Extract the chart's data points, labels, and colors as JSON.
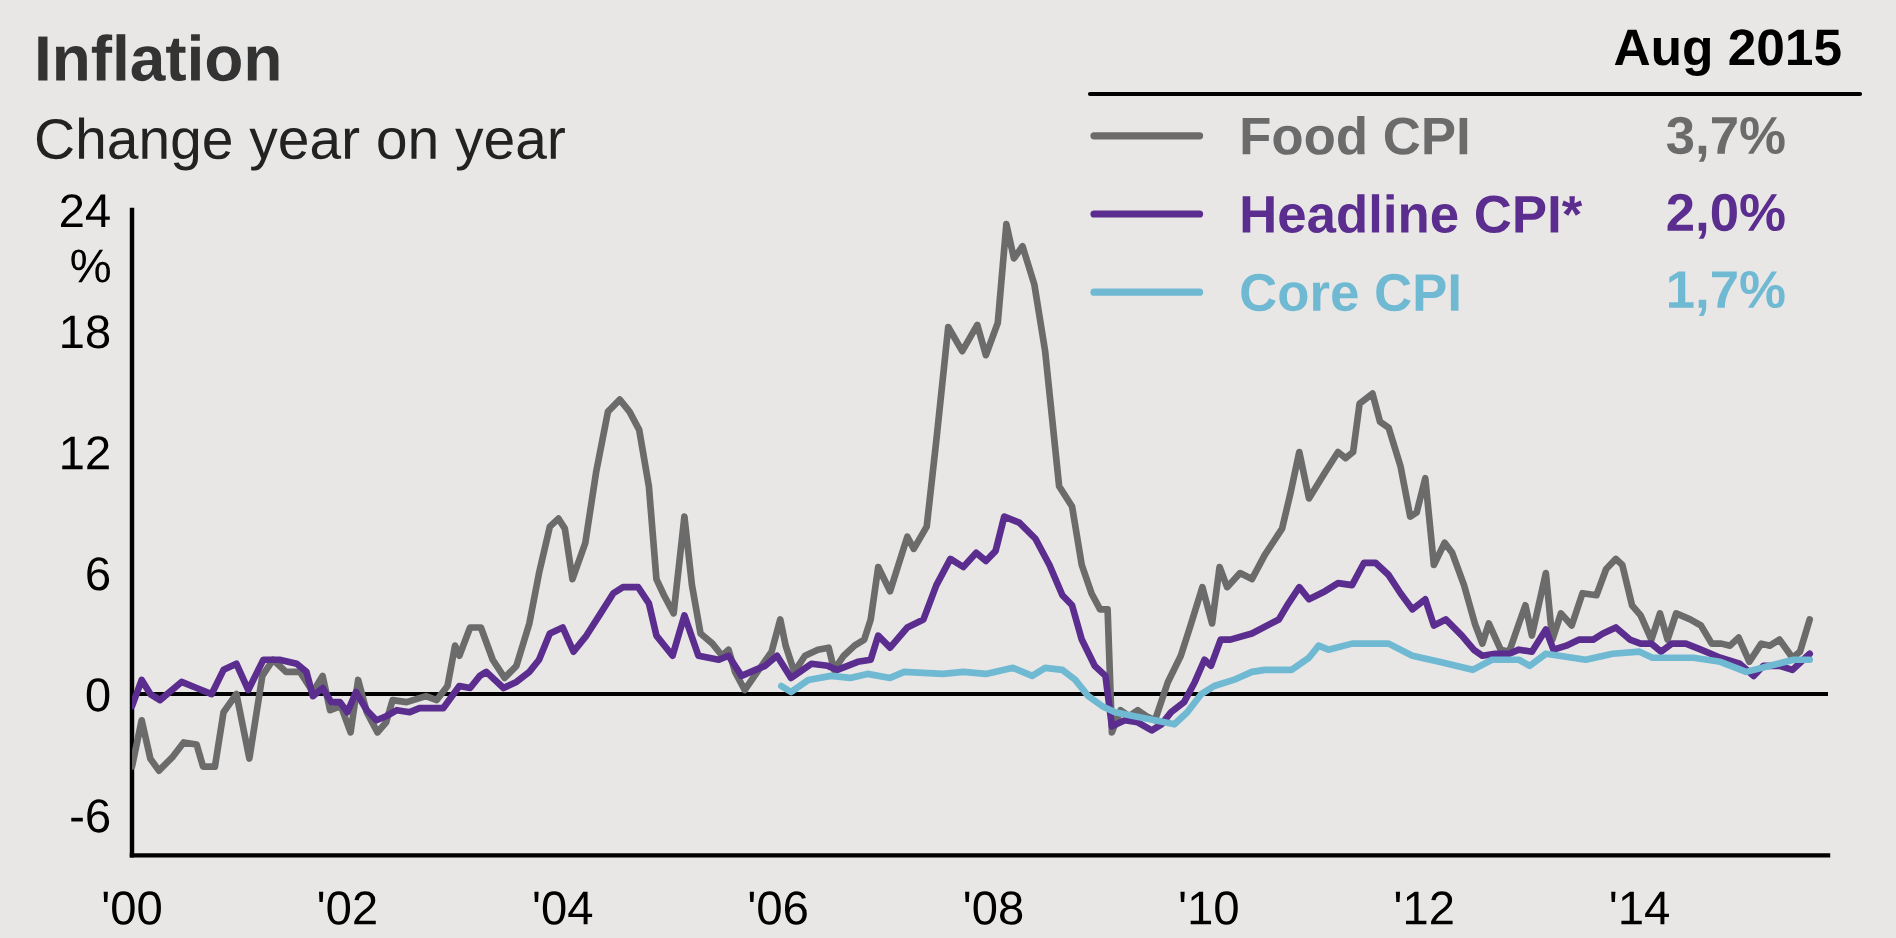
{
  "chart_data": {
    "type": "line",
    "title": "Inflation",
    "subtitle": "Change year on year",
    "ylabel": "%",
    "legend_title": "Aug 2015",
    "annotations": [
      "3,7%",
      "2,0%",
      "1,7%"
    ],
    "xlim": [
      2000,
      2015.75
    ],
    "ylim": [
      -8,
      24
    ],
    "xticks": [
      {
        "value": 2000,
        "label": "'00"
      },
      {
        "value": 2002,
        "label": "'02"
      },
      {
        "value": 2004,
        "label": "'04"
      },
      {
        "value": 2006,
        "label": "'06"
      },
      {
        "value": 2008,
        "label": "'08"
      },
      {
        "value": 2010,
        "label": "'10"
      },
      {
        "value": 2012,
        "label": "'12"
      },
      {
        "value": 2014,
        "label": "'14"
      }
    ],
    "yticks": [
      -6,
      0,
      6,
      12,
      18,
      24
    ],
    "legend": "top right",
    "line_style": "solid",
    "ref_lines": [
      {
        "axis": "y",
        "value": 0,
        "color": "#000000"
      }
    ],
    "series": [
      {
        "name": "Food CPI",
        "color": "#6b6b6b",
        "x": [
          2000.0,
          2000.09,
          2000.17,
          2000.25,
          2000.38,
          2000.48,
          2000.6,
          2000.66,
          2000.77,
          2000.85,
          2000.97,
          2001.09,
          2001.21,
          2001.31,
          2001.43,
          2001.56,
          2001.68,
          2001.77,
          2001.84,
          2001.94,
          2002.03,
          2002.1,
          2002.18,
          2002.28,
          2002.36,
          2002.42,
          2002.55,
          2002.73,
          2002.83,
          2002.93,
          2003.0,
          2003.04,
          2003.14,
          2003.24,
          2003.35,
          2003.46,
          2003.57,
          2003.69,
          2003.78,
          2003.88,
          2003.96,
          2004.02,
          2004.09,
          2004.21,
          2004.31,
          2004.42,
          2004.53,
          2004.62,
          2004.71,
          2004.8,
          2004.87,
          2004.94,
          2005.03,
          2005.13,
          2005.2,
          2005.28,
          2005.39,
          2005.48,
          2005.54,
          2005.6,
          2005.69,
          2005.82,
          2005.94,
          2006.02,
          2006.07,
          2006.15,
          2006.25,
          2006.37,
          2006.47,
          2006.52,
          2006.61,
          2006.71,
          2006.8,
          2006.86,
          2006.93,
          2007.04,
          2007.2,
          2007.26,
          2007.38,
          2007.47,
          2007.58,
          2007.71,
          2007.85,
          2007.93,
          2008.04,
          2008.12,
          2008.19,
          2008.27,
          2008.38,
          2008.48,
          2008.61,
          2008.73,
          2008.82,
          2008.91,
          2008.99,
          2009.06,
          2009.1,
          2009.18,
          2009.26,
          2009.34,
          2009.42,
          2009.5,
          2009.62,
          2009.74,
          2009.83,
          2009.94,
          2010.03,
          2010.1,
          2010.17,
          2010.29,
          2010.4,
          2010.52,
          2010.68,
          2010.76,
          2010.84,
          2010.93,
          2011.08,
          2011.2,
          2011.27,
          2011.34,
          2011.4,
          2011.52,
          2011.59,
          2011.67,
          2011.78,
          2011.87,
          2011.93,
          2012.01,
          2012.09,
          2012.19,
          2012.26,
          2012.37,
          2012.47,
          2012.54,
          2012.6,
          2012.71,
          2012.79,
          2012.88,
          2012.94,
          2013.0,
          2013.13,
          2013.19,
          2013.27,
          2013.37,
          2013.47,
          2013.6,
          2013.69,
          2013.78,
          2013.84,
          2013.93,
          2014.01,
          2014.11,
          2014.19,
          2014.26,
          2014.34,
          2014.47,
          2014.57,
          2014.67,
          2014.76,
          2014.84,
          2014.92,
          2015.02,
          2015.13,
          2015.21,
          2015.3,
          2015.42,
          2015.49,
          2015.58
        ],
        "values": [
          -3.6,
          -1.3,
          -3.2,
          -3.8,
          -3.1,
          -2.4,
          -2.5,
          -3.6,
          -3.6,
          -0.9,
          0,
          -3.2,
          0.9,
          1.7,
          1.1,
          1.1,
          0.1,
          0.9,
          -0.8,
          -0.6,
          -1.9,
          0.7,
          -0.9,
          -1.9,
          -1.4,
          -0.3,
          -0.4,
          -0.1,
          -0.3,
          0.4,
          2.4,
          1.9,
          3.3,
          3.3,
          1.7,
          0.8,
          1.4,
          3.5,
          6.0,
          8.3,
          8.7,
          8.2,
          5.7,
          7.5,
          11.0,
          14.0,
          14.6,
          14.0,
          13.1,
          10.3,
          5.7,
          4.9,
          4.0,
          8.8,
          5.4,
          3.0,
          2.5,
          1.9,
          2.2,
          1.1,
          0.2,
          1.2,
          2.1,
          3.7,
          2.4,
          1.1,
          1.9,
          2.2,
          2.3,
          1.2,
          1.9,
          2.4,
          2.7,
          3.7,
          6.3,
          5.1,
          7.8,
          7.2,
          8.3,
          12.6,
          18.2,
          17.0,
          18.3,
          16.8,
          18.4,
          23.3,
          21.6,
          22.2,
          20.3,
          17.0,
          10.3,
          9.3,
          6.4,
          5.0,
          4.2,
          4.2,
          -1.9,
          -0.8,
          -1.1,
          -0.8,
          -1.1,
          -1.3,
          0.6,
          1.9,
          3.4,
          5.3,
          3.5,
          6.3,
          5.3,
          6.0,
          5.7,
          6.9,
          8.2,
          10.0,
          12.0,
          9.7,
          11.0,
          12.0,
          11.7,
          12.0,
          14.4,
          14.9,
          13.5,
          13.2,
          11.3,
          8.8,
          9.0,
          10.7,
          6.4,
          7.5,
          7.0,
          5.4,
          3.5,
          2.5,
          3.5,
          2.2,
          2.1,
          3.5,
          4.4,
          2.9,
          6.0,
          2.7,
          4.0,
          3.4,
          5.0,
          4.9,
          6.2,
          6.7,
          6.4,
          4.4,
          3.9,
          2.7,
          4.0,
          2.7,
          4.0,
          3.7,
          3.4,
          2.5,
          2.5,
          2.4,
          2.8,
          1.6,
          2.5,
          2.4,
          2.7,
          1.8,
          2.1,
          3.7
        ]
      },
      {
        "name": "Headline CPI*",
        "color": "#5b2d8e",
        "x": [
          2000.0,
          2000.09,
          2000.17,
          2000.26,
          2000.46,
          2000.6,
          2000.74,
          2000.85,
          2000.97,
          2001.08,
          2001.22,
          2001.37,
          2001.53,
          2001.62,
          2001.68,
          2001.77,
          2001.85,
          2001.93,
          2002.0,
          2002.08,
          2002.18,
          2002.27,
          2002.36,
          2002.46,
          2002.58,
          2002.67,
          2002.89,
          2003.04,
          2003.14,
          2003.23,
          2003.29,
          2003.45,
          2003.57,
          2003.69,
          2003.78,
          2003.88,
          2004.0,
          2004.1,
          2004.22,
          2004.34,
          2004.47,
          2004.56,
          2004.7,
          2004.8,
          2004.87,
          2005.02,
          2005.13,
          2005.26,
          2005.45,
          2005.54,
          2005.66,
          2005.79,
          2005.88,
          2005.99,
          2006.12,
          2006.31,
          2006.46,
          2006.55,
          2006.74,
          2006.86,
          2006.93,
          2007.04,
          2007.2,
          2007.35,
          2007.47,
          2007.6,
          2007.72,
          2007.84,
          2007.93,
          2008.02,
          2008.1,
          2008.24,
          2008.39,
          2008.52,
          2008.64,
          2008.73,
          2008.82,
          2008.94,
          2009.04,
          2009.1,
          2009.22,
          2009.34,
          2009.47,
          2009.56,
          2009.65,
          2009.77,
          2009.87,
          2009.96,
          2010.02,
          2010.11,
          2010.2,
          2010.4,
          2010.65,
          2010.74,
          2010.84,
          2010.93,
          2011.08,
          2011.2,
          2011.33,
          2011.44,
          2011.55,
          2011.67,
          2011.78,
          2011.89,
          2012.01,
          2012.09,
          2012.2,
          2012.35,
          2012.46,
          2012.54,
          2012.66,
          2012.79,
          2012.88,
          2013.0,
          2013.13,
          2013.2,
          2013.32,
          2013.44,
          2013.57,
          2013.66,
          2013.78,
          2013.91,
          2014.01,
          2014.11,
          2014.2,
          2014.3,
          2014.43,
          2014.57,
          2014.75,
          2014.93,
          2015.06,
          2015.15,
          2015.3,
          2015.42,
          2015.58
        ],
        "values": [
          -0.6,
          0.7,
          0,
          -0.3,
          0.6,
          0.3,
          0,
          1.2,
          1.5,
          0.2,
          1.7,
          1.7,
          1.5,
          1.1,
          -0.1,
          0.3,
          -0.4,
          -0.4,
          -0.9,
          0.1,
          -0.8,
          -1.3,
          -1.1,
          -0.8,
          -0.9,
          -0.7,
          -0.7,
          0.4,
          0.3,
          0.9,
          1.1,
          0.3,
          0.6,
          1.1,
          1.7,
          3.0,
          3.3,
          2.1,
          2.9,
          3.9,
          5.0,
          5.3,
          5.3,
          4.5,
          2.9,
          1.9,
          3.9,
          1.9,
          1.7,
          1.9,
          0.9,
          1.2,
          1.4,
          1.9,
          0.8,
          1.5,
          1.4,
          1.2,
          1.6,
          1.7,
          2.9,
          2.3,
          3.3,
          3.7,
          5.4,
          6.7,
          6.3,
          7.0,
          6.6,
          7.1,
          8.8,
          8.5,
          7.7,
          6.4,
          4.9,
          4.4,
          2.7,
          1.4,
          0.9,
          -1.6,
          -1.3,
          -1.4,
          -1.8,
          -1.5,
          -0.9,
          -0.4,
          0.6,
          1.7,
          1.4,
          2.7,
          2.7,
          3.0,
          3.7,
          4.5,
          5.3,
          4.7,
          5.1,
          5.5,
          5.4,
          6.5,
          6.5,
          5.9,
          5.0,
          4.2,
          4.7,
          3.4,
          3.7,
          2.9,
          2.2,
          1.9,
          2.0,
          2.0,
          2.2,
          2.1,
          3.2,
          2.2,
          2.4,
          2.7,
          2.7,
          3.0,
          3.3,
          2.7,
          2.5,
          2.5,
          2.1,
          2.5,
          2.5,
          2.2,
          1.8,
          1.5,
          0.9,
          1.4,
          1.4,
          1.2,
          2.0
        ]
      },
      {
        "name": "Core CPI",
        "color": "#70b9d3",
        "x": [
          2006.03,
          2006.12,
          2006.28,
          2006.49,
          2006.67,
          2006.83,
          2007.04,
          2007.17,
          2007.53,
          2007.72,
          2007.93,
          2008.18,
          2008.36,
          2008.48,
          2008.64,
          2008.76,
          2008.88,
          2009.01,
          2009.13,
          2009.31,
          2009.5,
          2009.68,
          2009.8,
          2009.93,
          2010.05,
          2010.23,
          2010.4,
          2010.52,
          2010.77,
          2010.93,
          2011.02,
          2011.11,
          2011.33,
          2011.67,
          2011.89,
          2012.14,
          2012.45,
          2012.63,
          2012.88,
          2012.98,
          2013.13,
          2013.5,
          2013.75,
          2014.0,
          2014.12,
          2014.5,
          2014.75,
          2014.99,
          2015.21,
          2015.43,
          2015.58
        ],
        "values": [
          0.4,
          0.1,
          0.7,
          0.9,
          0.8,
          1.0,
          0.8,
          1.1,
          1.0,
          1.1,
          1.0,
          1.3,
          0.9,
          1.3,
          1.2,
          0.7,
          -0.1,
          -0.6,
          -0.9,
          -1.1,
          -1.3,
          -1.5,
          -0.9,
          0,
          0.4,
          0.7,
          1.1,
          1.2,
          1.2,
          1.8,
          2.4,
          2.2,
          2.5,
          2.5,
          1.9,
          1.6,
          1.2,
          1.7,
          1.7,
          1.4,
          2.0,
          1.7,
          2.0,
          2.1,
          1.8,
          1.8,
          1.6,
          1.1,
          1.4,
          1.7,
          1.7
        ]
      }
    ]
  }
}
